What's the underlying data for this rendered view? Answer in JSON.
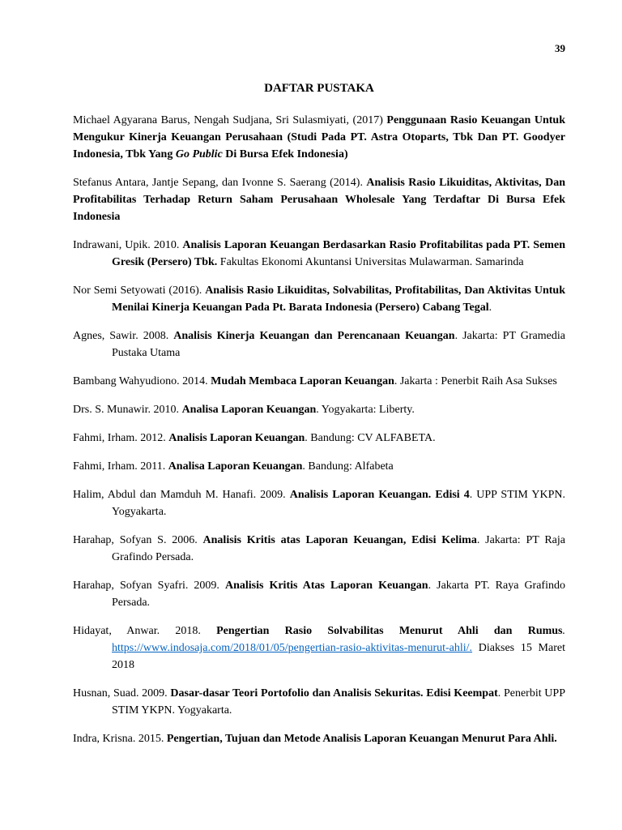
{
  "pageNumber": "39",
  "title": "DAFTAR PUSTAKA",
  "entries": [
    {
      "hanging": false,
      "segments": [
        {
          "t": "Michael Agyarana Barus, Nengah Sudjana, Sri Sulasmiyati, (2017) "
        },
        {
          "t": "Penggunaan Rasio Keuangan Untuk Mengukur Kinerja Keuangan Perusahaan (Studi Pada PT. Astra Otoparts, Tbk Dan PT. Goodyer Indonesia, Tbk Yang ",
          "bold": true
        },
        {
          "t": "Go Public",
          "bold": true,
          "italic": true
        },
        {
          "t": " Di Bursa Efek Indonesia)",
          "bold": true
        }
      ]
    },
    {
      "hanging": false,
      "segments": [
        {
          "t": "Stefanus Antara, Jantje Sepang, dan Ivonne S. Saerang (2014). "
        },
        {
          "t": "Analisis Rasio Likuiditas, Aktivitas, Dan Profitabilitas Terhadap Return Saham Perusahaan Wholesale Yang Terdaftar  Di Bursa Efek Indonesia",
          "bold": true
        }
      ]
    },
    {
      "hanging": true,
      "segments": [
        {
          "t": "Indrawani, Upik. 2010. "
        },
        {
          "t": "Analisis Laporan Keuangan Berdasarkan Rasio Profitabilitas pada PT. Semen Gresik (Persero) Tbk.",
          "bold": true
        },
        {
          "t": " Fakultas Ekonomi Akuntansi Universitas Mulawarman. Samarinda"
        }
      ]
    },
    {
      "hanging": true,
      "segments": [
        {
          "t": "Nor Semi Setyowati (2016). "
        },
        {
          "t": "Analisis Rasio Likuiditas, Solvabilitas, Profitabilitas, Dan Aktivitas Untuk Menilai Kinerja Keuangan Pada Pt. Barata Indonesia (Persero) Cabang Tegal",
          "bold": true
        },
        {
          "t": "."
        }
      ]
    },
    {
      "hanging": true,
      "segments": [
        {
          "t": "Agnes, Sawir. 2008. "
        },
        {
          "t": "Analisis Kinerja Keuangan dan Perencanaan Keuangan",
          "bold": true
        },
        {
          "t": ". Jakarta: PT Gramedia Pustaka Utama"
        }
      ]
    },
    {
      "hanging": true,
      "segments": [
        {
          "t": "Bambang Wahyudiono. 2014. "
        },
        {
          "t": "Mudah Membaca Laporan Keuangan",
          "bold": true
        },
        {
          "t": ". Jakarta : Penerbit Raih Asa Sukses"
        }
      ]
    },
    {
      "hanging": true,
      "segments": [
        {
          "t": "Drs. S. Munawir. 2010. "
        },
        {
          "t": "Analisa Laporan Keuangan",
          "bold": true
        },
        {
          "t": ". Yogyakarta: Liberty."
        }
      ]
    },
    {
      "hanging": true,
      "segments": [
        {
          "t": "Fahmi, Irham. 2012. "
        },
        {
          "t": "Analisis Laporan Keuangan",
          "bold": true
        },
        {
          "t": ". Bandung: CV ALFABETA."
        }
      ]
    },
    {
      "hanging": true,
      "segments": [
        {
          "t": "Fahmi, Irham. 2011. "
        },
        {
          "t": "Analisa Laporan Keuangan",
          "bold": true
        },
        {
          "t": ". Bandung: Alfabeta"
        }
      ]
    },
    {
      "hanging": true,
      "segments": [
        {
          "t": "Halim, Abdul dan Mamduh M. Hanafi. 2009. "
        },
        {
          "t": "Analisis Laporan Keuangan. Edisi 4",
          "bold": true
        },
        {
          "t": ". UPP STIM YKPN. Yogyakarta."
        }
      ]
    },
    {
      "hanging": true,
      "segments": [
        {
          "t": "Harahap, Sofyan S. 2006. "
        },
        {
          "t": "Analisis Kritis atas Laporan Keuangan, Edisi Kelima",
          "bold": true
        },
        {
          "t": ". Jakarta: PT Raja Grafindo Persada."
        }
      ]
    },
    {
      "hanging": true,
      "segments": [
        {
          "t": "Harahap, Sofyan Syafri. 2009. "
        },
        {
          "t": "Analisis Kritis Atas Laporan Keuangan",
          "bold": true
        },
        {
          "t": ". Jakarta PT. Raya Grafindo Persada."
        }
      ]
    },
    {
      "hanging": true,
      "segments": [
        {
          "t": "Hidayat, Anwar. 2018. "
        },
        {
          "t": "Pengertian Rasio Solvabilitas Menurut Ahli dan Rumus",
          "bold": true
        },
        {
          "t": ". ",
          "italic": true
        },
        {
          "t": "https://www.indosaja.com/2018/01/05/pengertian-rasio-aktivitas-menurut-ahli/.",
          "link": true
        },
        {
          "t": " Diakses 15 Maret 2018"
        }
      ]
    },
    {
      "hanging": true,
      "segments": [
        {
          "t": "Husnan, Suad. 2009. "
        },
        {
          "t": "Dasar-dasar Teori Portofolio dan Analisis Sekuritas. Edisi  Keempat",
          "bold": true
        },
        {
          "t": ". Penerbit UPP STIM YKPN. Yogyakarta."
        }
      ]
    },
    {
      "hanging": true,
      "segments": [
        {
          "t": "Indra, Krisna. 2015. "
        },
        {
          "t": "Pengertian, Tujuan dan Metode Analisis Laporan Keuangan Menurut Para Ahli.",
          "bold": true
        }
      ]
    }
  ]
}
